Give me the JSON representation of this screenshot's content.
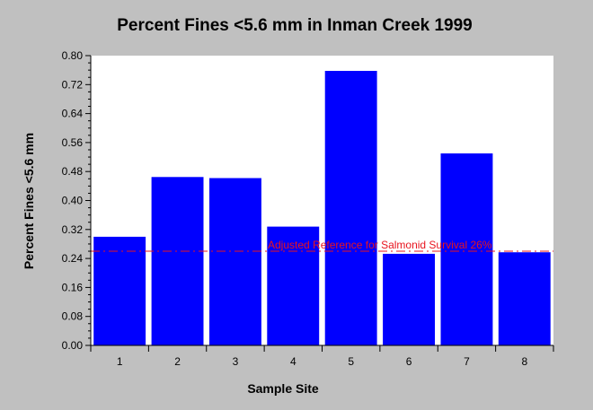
{
  "chart_data": {
    "type": "bar",
    "title": "Percent Fines <5.6 mm in Inman Creek 1999",
    "xlabel": "Sample Site",
    "ylabel": "Percent Fines <5.6 mm",
    "categories": [
      "1",
      "2",
      "3",
      "4",
      "5",
      "6",
      "7",
      "8"
    ],
    "values": [
      0.3,
      0.465,
      0.462,
      0.328,
      0.758,
      0.253,
      0.53,
      0.257
    ],
    "ylim": [
      0,
      0.8
    ],
    "yticks": [
      "0.00",
      "0.08",
      "0.16",
      "0.24",
      "0.32",
      "0.40",
      "0.48",
      "0.56",
      "0.64",
      "0.72",
      "0.80"
    ],
    "grid": false,
    "bar_color": "#0000ff",
    "reference_line": {
      "value": 0.26,
      "label": "Adjusted Reference for Salmonid Survival 26%",
      "color": "#e8141e"
    }
  }
}
